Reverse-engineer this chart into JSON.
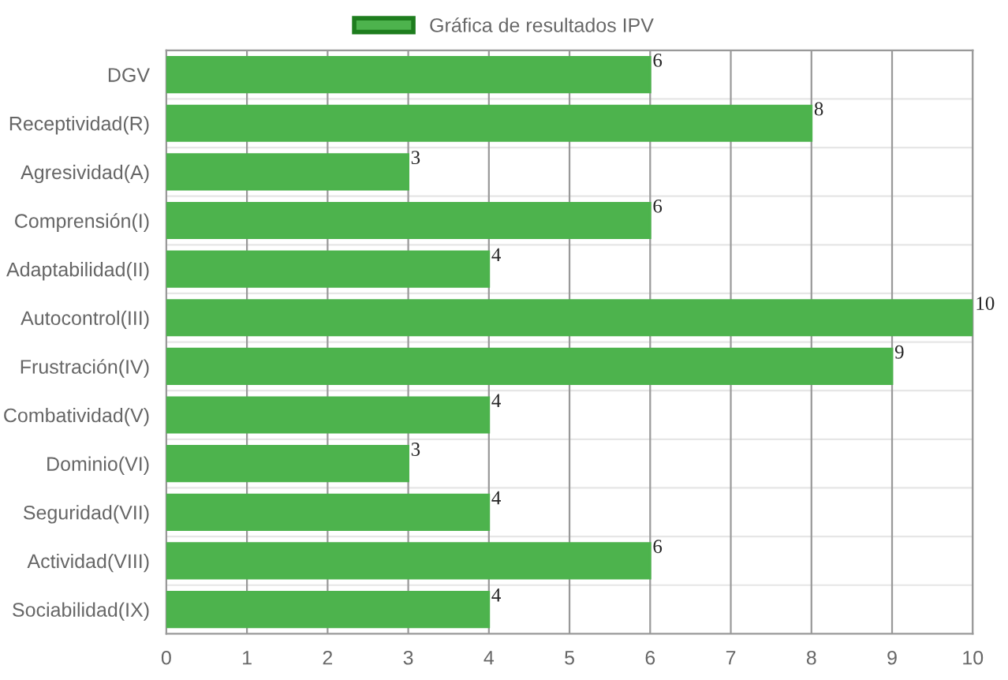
{
  "chart_data": {
    "type": "bar",
    "orientation": "horizontal",
    "categories": [
      "DGV",
      "Receptividad(R)",
      "Agresividad(A)",
      "Comprensión(I)",
      "Adaptabilidad(II)",
      "Autocontrol(III)",
      "Frustración(IV)",
      "Combatividad(V)",
      "Dominio(VI)",
      "Seguridad(VII)",
      "Actividad(VIII)",
      "Sociabilidad(IX)"
    ],
    "series": [
      {
        "name": "Gráfica de resultados IPV",
        "color": "#4db34d",
        "values": [
          6,
          8,
          3,
          6,
          4,
          10,
          9,
          4,
          3,
          4,
          6,
          4
        ]
      }
    ],
    "xlim": [
      0,
      10
    ],
    "xticks": [
      0,
      1,
      2,
      3,
      4,
      5,
      6,
      7,
      8,
      9,
      10
    ],
    "grid": true,
    "legend": "top",
    "data_labels": true
  }
}
